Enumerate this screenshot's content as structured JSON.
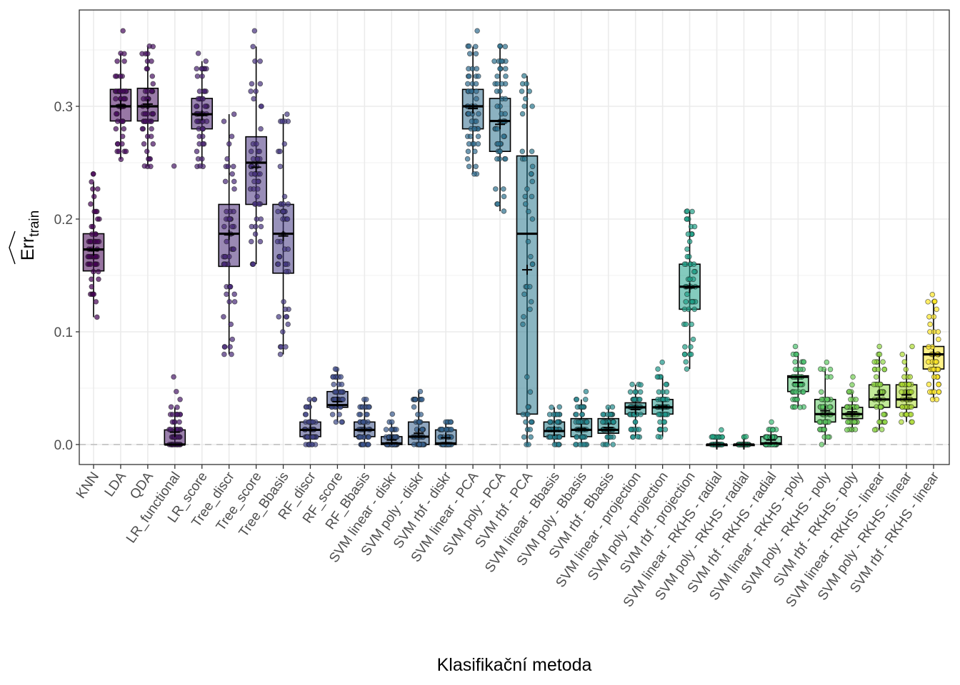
{
  "chart_data": {
    "type": "box",
    "title": "",
    "xlabel": "Klasifikační metoda",
    "ylabel": {
      "main": "Err",
      "subscript": "train",
      "accent": "hat"
    },
    "ylim": [
      -0.016,
      0.38
    ],
    "yticks": [
      0.0,
      0.1,
      0.2,
      0.3
    ],
    "ytick_labels": [
      "0.0",
      "0.1",
      "0.2",
      "0.3"
    ],
    "grid": true,
    "reference_line": {
      "y": 0.0,
      "style": "dashed",
      "color": "#bdbdbd"
    },
    "legend": "none",
    "categories": [
      "KNN",
      "LDA",
      "QDA",
      "LR_functional",
      "LR_score",
      "Tree_discr",
      "Tree_score",
      "Tree_Bbasis",
      "RF_discr",
      "RF_score",
      "RF_Bbasis",
      "SVM linear - diskr",
      "SVM poly - diskr",
      "SVM rbf - diskr",
      "SVM linear - PCA",
      "SVM poly - PCA",
      "SVM rbf - PCA",
      "SVM linear - Bbasis",
      "SVM poly - Bbasis",
      "SVM rbf - Bbasis",
      "SVM linear - projection",
      "SVM poly - projection",
      "SVM rbf - projection",
      "SVM linear - RKHS - radial",
      "SVM poly - RKHS - radial",
      "SVM rbf - RKHS - radial",
      "SVM linear - RKHS - poly",
      "SVM poly - RKHS - poly",
      "SVM rbf - RKHS - poly",
      "SVM linear - RKHS - linear",
      "SVM poly - RKHS - linear",
      "SVM rbf - RKHS - linear"
    ],
    "boxes": [
      {
        "min": 0.113,
        "q1": 0.154,
        "median": 0.173,
        "q3": 0.187,
        "max": 0.233,
        "mean": 0.172,
        "outliers": [
          0.24,
          0.24
        ]
      },
      {
        "min": 0.253,
        "q1": 0.287,
        "median": 0.3,
        "q3": 0.315,
        "max": 0.347,
        "mean": 0.301,
        "outliers": [
          0.367
        ]
      },
      {
        "min": 0.247,
        "q1": 0.287,
        "median": 0.3,
        "q3": 0.316,
        "max": 0.353,
        "mean": 0.302,
        "outliers": []
      },
      {
        "min": 0.0,
        "q1": 0.0,
        "median": 0.0,
        "q3": 0.013,
        "max": 0.033,
        "mean": 0.011,
        "outliers": [
          0.04,
          0.047,
          0.06,
          0.247
        ]
      },
      {
        "min": 0.247,
        "q1": 0.28,
        "median": 0.293,
        "q3": 0.307,
        "max": 0.34,
        "mean": 0.292,
        "outliers": [
          0.347
        ]
      },
      {
        "min": 0.08,
        "q1": 0.158,
        "median": 0.187,
        "q3": 0.213,
        "max": 0.293,
        "mean": 0.186,
        "outliers": []
      },
      {
        "min": 0.16,
        "q1": 0.213,
        "median": 0.25,
        "q3": 0.273,
        "max": 0.353,
        "mean": 0.246,
        "outliers": [
          0.367
        ]
      },
      {
        "min": 0.08,
        "q1": 0.152,
        "median": 0.187,
        "q3": 0.213,
        "max": 0.293,
        "mean": 0.185,
        "outliers": []
      },
      {
        "min": 0.0,
        "q1": 0.007,
        "median": 0.013,
        "q3": 0.02,
        "max": 0.04,
        "mean": 0.013,
        "outliers": []
      },
      {
        "min": 0.02,
        "q1": 0.033,
        "median": 0.035,
        "q3": 0.047,
        "max": 0.067,
        "mean": 0.038,
        "outliers": []
      },
      {
        "min": 0.0,
        "q1": 0.007,
        "median": 0.013,
        "q3": 0.02,
        "max": 0.04,
        "mean": 0.013,
        "outliers": []
      },
      {
        "min": 0.0,
        "q1": 0.0,
        "median": 0.001,
        "q3": 0.007,
        "max": 0.02,
        "mean": 0.004,
        "outliers": [
          0.027
        ]
      },
      {
        "min": 0.0,
        "q1": 0.0,
        "median": 0.007,
        "q3": 0.02,
        "max": 0.047,
        "mean": 0.01,
        "outliers": []
      },
      {
        "min": 0.0,
        "q1": 0.0,
        "median": 0.001,
        "q3": 0.013,
        "max": 0.02,
        "mean": 0.006,
        "outliers": []
      },
      {
        "min": 0.24,
        "q1": 0.28,
        "median": 0.3,
        "q3": 0.315,
        "max": 0.353,
        "mean": 0.298,
        "outliers": [
          0.367
        ]
      },
      {
        "min": 0.207,
        "q1": 0.26,
        "median": 0.287,
        "q3": 0.307,
        "max": 0.353,
        "mean": 0.284,
        "outliers": []
      },
      {
        "min": 0.0,
        "q1": 0.027,
        "median": 0.187,
        "q3": 0.256,
        "max": 0.327,
        "mean": 0.155,
        "outliers": []
      },
      {
        "min": 0.0,
        "q1": 0.007,
        "median": 0.012,
        "q3": 0.02,
        "max": 0.033,
        "mean": 0.012,
        "outliers": []
      },
      {
        "min": 0.0,
        "q1": 0.007,
        "median": 0.013,
        "q3": 0.023,
        "max": 0.04,
        "mean": 0.014,
        "outliers": [
          0.047
        ]
      },
      {
        "min": 0.0,
        "q1": 0.01,
        "median": 0.013,
        "q3": 0.023,
        "max": 0.033,
        "mean": 0.015,
        "outliers": []
      },
      {
        "min": 0.007,
        "q1": 0.027,
        "median": 0.033,
        "q3": 0.037,
        "max": 0.053,
        "mean": 0.031,
        "outliers": []
      },
      {
        "min": 0.007,
        "q1": 0.027,
        "median": 0.033,
        "q3": 0.04,
        "max": 0.06,
        "mean": 0.034,
        "outliers": [
          0.067,
          0.073
        ]
      },
      {
        "min": 0.067,
        "q1": 0.12,
        "median": 0.14,
        "q3": 0.16,
        "max": 0.207,
        "mean": 0.139,
        "outliers": []
      },
      {
        "min": 0.0,
        "q1": 0.0,
        "median": 0.0,
        "q3": 0.0,
        "max": 0.007,
        "mean": 0.0,
        "outliers": [
          0.013
        ]
      },
      {
        "min": 0.0,
        "q1": 0.0,
        "median": 0.0,
        "q3": 0.0,
        "max": 0.007,
        "mean": 0.0,
        "outliers": []
      },
      {
        "min": 0.0,
        "q1": 0.0,
        "median": 0.001,
        "q3": 0.007,
        "max": 0.013,
        "mean": 0.004,
        "outliers": [
          0.02
        ]
      },
      {
        "min": 0.033,
        "q1": 0.047,
        "median": 0.06,
        "q3": 0.061,
        "max": 0.08,
        "mean": 0.055,
        "outliers": [
          0.087
        ]
      },
      {
        "min": 0.0,
        "q1": 0.02,
        "median": 0.027,
        "q3": 0.04,
        "max": 0.067,
        "mean": 0.03,
        "outliers": [
          0.073
        ]
      },
      {
        "min": 0.013,
        "q1": 0.023,
        "median": 0.027,
        "q3": 0.033,
        "max": 0.047,
        "mean": 0.029,
        "outliers": [
          0.053,
          0.06
        ]
      },
      {
        "min": 0.013,
        "q1": 0.033,
        "median": 0.04,
        "q3": 0.053,
        "max": 0.08,
        "mean": 0.044,
        "outliers": [
          0.087
        ]
      },
      {
        "min": 0.02,
        "q1": 0.033,
        "median": 0.04,
        "q3": 0.053,
        "max": 0.08,
        "mean": 0.044,
        "outliers": [
          0.087
        ]
      },
      {
        "min": 0.04,
        "q1": 0.067,
        "median": 0.08,
        "q3": 0.087,
        "max": 0.127,
        "mean": 0.08,
        "outliers": [
          0.133
        ]
      }
    ],
    "colors": [
      "#440154",
      "#46085c",
      "#471063",
      "#48186a",
      "#472171",
      "#472877",
      "#46307e",
      "#443983",
      "#414487",
      "#3e4c8a",
      "#3b528b",
      "#38598c",
      "#355f8d",
      "#32658e",
      "#2f6b8e",
      "#2c718e",
      "#2a788e",
      "#277f8e",
      "#25858e",
      "#228b8d",
      "#21918c",
      "#1f988b",
      "#1fa088",
      "#22a785",
      "#2db27d",
      "#3bbb75",
      "#4ac16d",
      "#5ec962",
      "#75d054",
      "#8fd744",
      "#addc30",
      "#fde725"
    ],
    "points_per_method": 50
  }
}
